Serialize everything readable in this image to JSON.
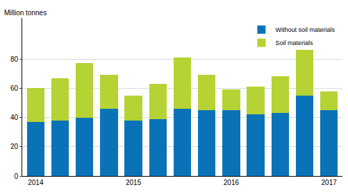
{
  "chart_data": {
    "type": "bar",
    "stacked": true,
    "y_label": "Million tonnes",
    "categories": [
      "2014",
      null,
      null,
      null,
      "2015",
      null,
      null,
      null,
      "2016",
      null,
      null,
      null,
      "2017"
    ],
    "series": [
      {
        "name": "Without soil materials",
        "color": "#0a73b8",
        "values": [
          37,
          38,
          40,
          46,
          38,
          39,
          46,
          45,
          45,
          42,
          43,
          55,
          45
        ]
      },
      {
        "name": "Soil materials",
        "color": "#b5d334",
        "values": [
          23,
          29,
          37,
          23,
          17,
          24,
          35,
          24,
          14,
          19,
          25,
          31,
          13
        ]
      }
    ],
    "ylim": [
      0,
      108
    ],
    "yticks": [
      0,
      20,
      40,
      60,
      80
    ],
    "grid": true,
    "legend": "top right"
  }
}
